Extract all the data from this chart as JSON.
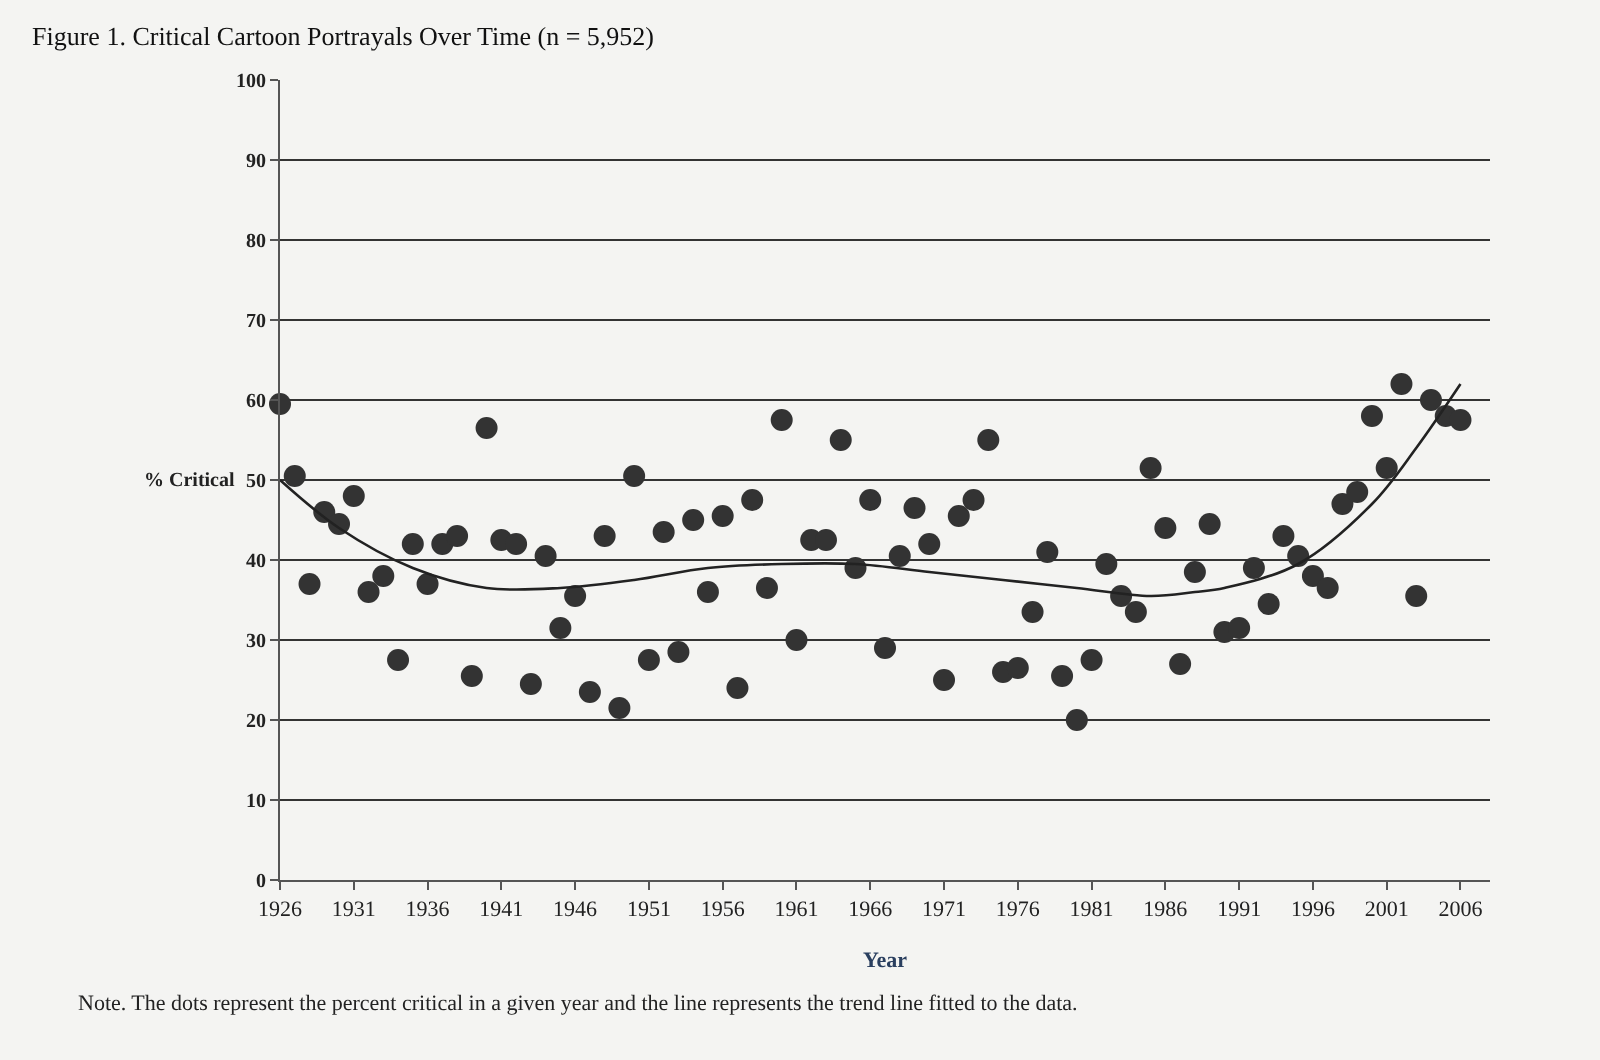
{
  "chart_data": {
    "type": "scatter",
    "title": "Figure 1. Critical Cartoon Portrayals Over Time (n = 5,952)",
    "xlabel": "Year",
    "ylabel": "% Critical",
    "annotations": [
      "Note. The dots represent the percent critical in a given year and the line represents the trend line fitted to the data."
    ],
    "xlim": [
      1926,
      2008
    ],
    "xticks": [
      1926,
      1931,
      1936,
      1941,
      1946,
      1951,
      1956,
      1961,
      1966,
      1971,
      1976,
      1981,
      1986,
      1991,
      1996,
      2001,
      2006
    ],
    "ylim": [
      0,
      100
    ],
    "yticks": [
      0,
      10,
      20,
      30,
      40,
      50,
      60,
      70,
      80,
      90,
      100
    ],
    "grid": "y",
    "marker": "circle",
    "series": [
      {
        "color": "#333333",
        "x": [
          1926,
          1927,
          1928,
          1929,
          1930,
          1931,
          1932,
          1933,
          1934,
          1935,
          1936,
          1937,
          1938,
          1939,
          1940,
          1941,
          1942,
          1943,
          1944,
          1945,
          1946,
          1947,
          1948,
          1949,
          1950,
          1951,
          1952,
          1953,
          1954,
          1955,
          1956,
          1957,
          1958,
          1959,
          1960,
          1961,
          1962,
          1963,
          1964,
          1965,
          1966,
          1967,
          1968,
          1969,
          1970,
          1971,
          1972,
          1973,
          1974,
          1975,
          1976,
          1977,
          1978,
          1979,
          1980,
          1981,
          1982,
          1983,
          1984,
          1985,
          1986,
          1987,
          1988,
          1989,
          1990,
          1991,
          1992,
          1993,
          1994,
          1995,
          1996,
          1997,
          1998,
          1999,
          2000,
          2001,
          2002,
          2003,
          2004,
          2005,
          2006
        ],
        "values": [
          59.5,
          50.5,
          37,
          46,
          44.5,
          48,
          36,
          38,
          27.5,
          42,
          37,
          42,
          43,
          25.5,
          56.5,
          42.5,
          42,
          24.5,
          40.5,
          31.5,
          35.5,
          23.5,
          43,
          21.5,
          50.5,
          27.5,
          43.5,
          28.5,
          45,
          36,
          45.5,
          24,
          47.5,
          36.5,
          57.5,
          30,
          42.5,
          42.5,
          55,
          39,
          47.5,
          29,
          40.5,
          46.5,
          42,
          25,
          45.5,
          47.5,
          55,
          26,
          26.5,
          33.5,
          41,
          25.5,
          20,
          27.5,
          39.5,
          35.5,
          33.5,
          51.5,
          44,
          27,
          38.5,
          44.5,
          31,
          31.5,
          39,
          34.5,
          43,
          40.5,
          38,
          36.5,
          47,
          48.5,
          58,
          51.5,
          62,
          35.5,
          60,
          58,
          57.5
        ]
      },
      {
        "type": "line",
        "color": "#222222",
        "marker": "none",
        "line_style": "solid",
        "x": [
          1926,
          1930,
          1935,
          1940,
          1945,
          1950,
          1955,
          1960,
          1965,
          1970,
          1975,
          1980,
          1985,
          1988,
          1990,
          1995,
          2000,
          2003,
          2006
        ],
        "values": [
          50,
          44,
          39,
          36.5,
          36.5,
          37.5,
          39,
          39.5,
          39.5,
          38.5,
          37.5,
          36.5,
          35.5,
          36,
          36.5,
          39.5,
          47,
          54,
          62
        ]
      }
    ]
  }
}
